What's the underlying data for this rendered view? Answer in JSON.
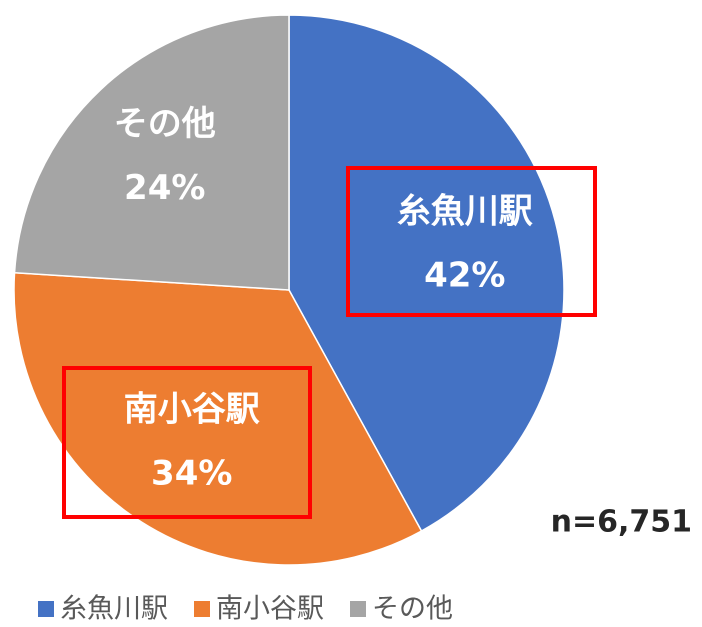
{
  "chart_data": {
    "type": "pie",
    "categories": [
      "糸魚川駅",
      "南小谷駅",
      "その他"
    ],
    "values": [
      42,
      34,
      24
    ],
    "value_labels": [
      "42%",
      "34%",
      "24%"
    ],
    "colors": [
      "#4472c4",
      "#ed7d31",
      "#a5a5a5"
    ],
    "annotation": "n=6,751"
  }
}
